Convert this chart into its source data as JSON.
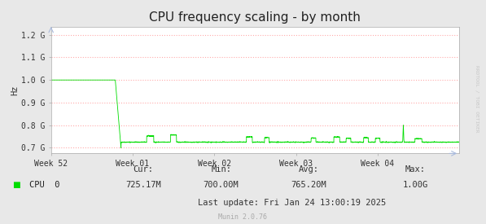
{
  "title": "CPU frequency scaling - by month",
  "ylabel": "Hz",
  "background_color": "#e8e8e8",
  "plot_bg_color": "#ffffff",
  "grid_color": "#ffaaaa",
  "line_color": "#00dd00",
  "yticks": [
    0.7,
    0.8,
    0.9,
    1.0,
    1.1,
    1.2
  ],
  "ytick_labels": [
    "0.7 G",
    "0.8 G",
    "0.9 G",
    "1.0 G",
    "1.1 G",
    "1.2 G"
  ],
  "ylim": [
    0.675,
    1.235
  ],
  "xtick_labels": [
    "Week 52",
    "Week 01",
    "Week 02",
    "Week 03",
    "Week 04"
  ],
  "watermark": "RRDTOOL / TOBI OETIKER",
  "legend_label": "CPU  0",
  "cur_label": "Cur:",
  "cur_value": "725.17M",
  "min_label": "Min:",
  "min_value": "700.00M",
  "avg_label": "Avg:",
  "avg_value": "765.20M",
  "max_label": "Max:",
  "max_value": "1.00G",
  "last_update": "Last update: Fri Jan 24 13:00:19 2025",
  "munin_version": "Munin 2.0.76",
  "title_fontsize": 11,
  "axis_fontsize": 7,
  "legend_fontsize": 7.5
}
